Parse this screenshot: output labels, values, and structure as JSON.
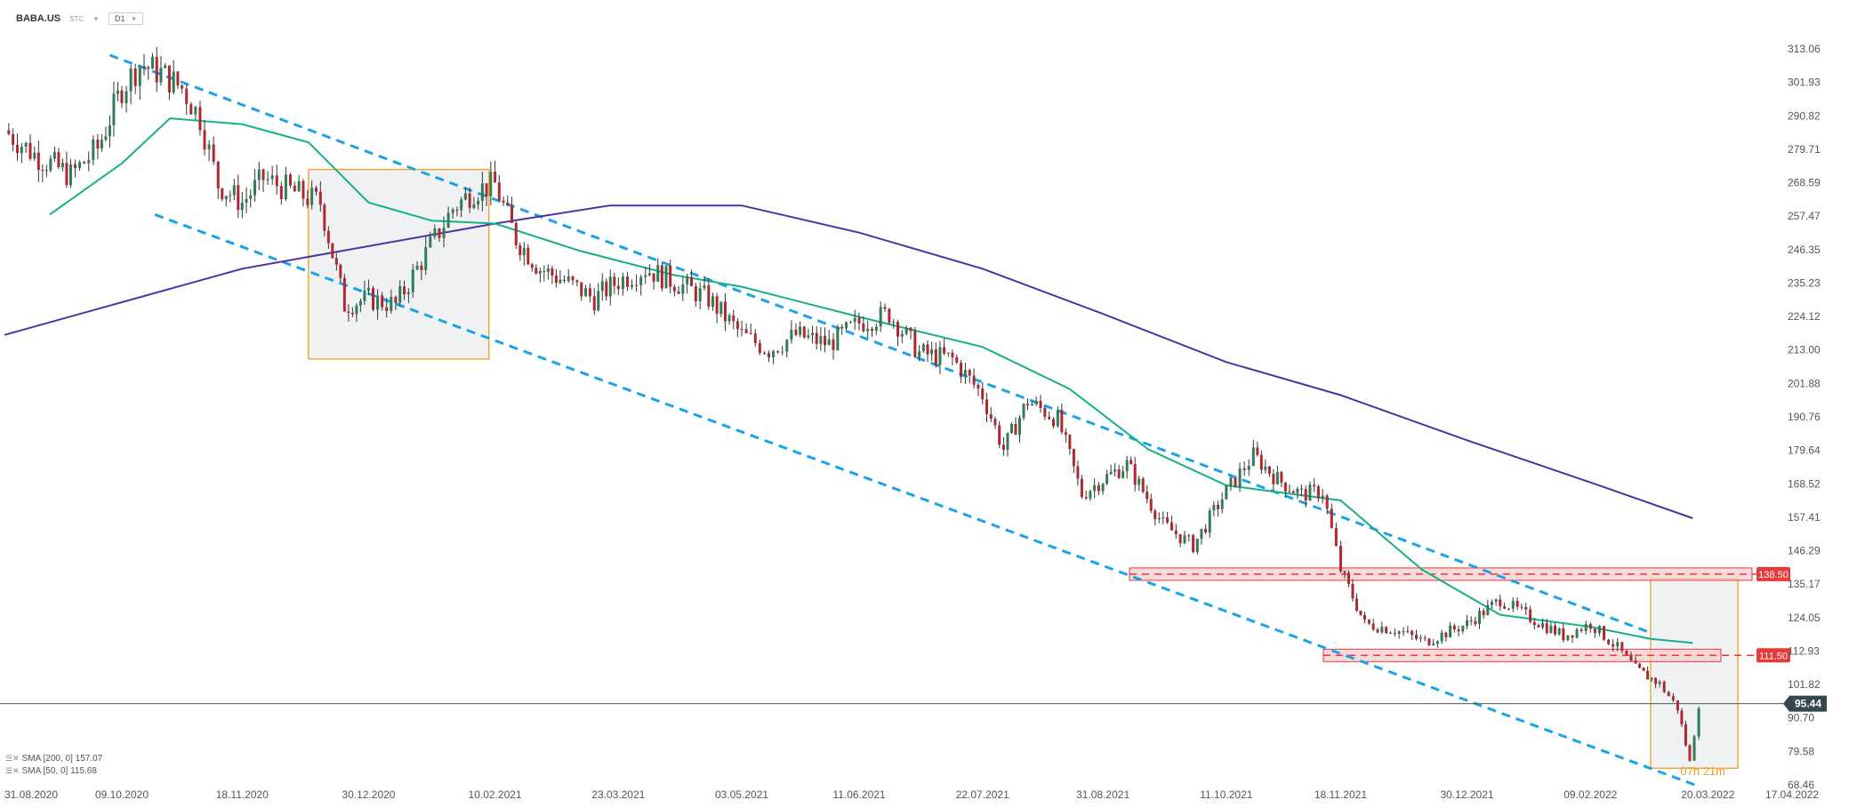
{
  "header": {
    "symbol": "BABA.US",
    "source": "STC",
    "timeframe": "D1"
  },
  "legend": [
    {
      "label": "SMA [200, 0] 157.07"
    },
    {
      "label": "SMA [50, 0] 115.68"
    }
  ],
  "timer": {
    "hours": "07",
    "h_unit": "h",
    "minutes": "21",
    "m_unit": "m"
  },
  "colors": {
    "up_candle": "#2e7d55",
    "down_candle": "#b0282f",
    "sma50": "#14b08a",
    "sma200": "#4b33a8",
    "channel": "#1aa3e8",
    "box": "#f0a020",
    "level": "#e53b3b",
    "price_tag": "#37474f"
  },
  "chart_data": {
    "type": "candlestick",
    "title": "",
    "xlabel": "",
    "ylabel": "",
    "y_ticks": [
      "313.06",
      "301.93",
      "290.82",
      "279.71",
      "268.59",
      "257.47",
      "246.35",
      "235.23",
      "224.12",
      "213.00",
      "201.88",
      "190.76",
      "179.64",
      "168.52",
      "157.41",
      "146.29",
      "135.17",
      "124.05",
      "112.93",
      "101.82",
      "90.70",
      "79.58",
      "68.46"
    ],
    "x_ticks": [
      "31.08.2020",
      "09.10.2020",
      "18.11.2020",
      "30.12.2020",
      "10.02.2021",
      "23.03.2021",
      "03.05.2021",
      "11.06.2021",
      "22.07.2021",
      "31.08.2021",
      "11.10.2021",
      "18.11.2021",
      "30.12.2021",
      "09.02.2022",
      "20.03.2022",
      "17.04.2022"
    ],
    "ylim": [
      68.46,
      313.06
    ],
    "last_price": "95.44",
    "levels": [
      {
        "label": "138.50",
        "value": 138.5
      },
      {
        "label": "111.50",
        "value": 111.5
      }
    ],
    "close_path": [
      [
        "31.08.2020",
        286
      ],
      [
        "10.09.2020",
        278
      ],
      [
        "22.09.2020",
        271
      ],
      [
        "01.10.2020",
        280
      ],
      [
        "09.10.2020",
        300
      ],
      [
        "15.10.2020",
        308
      ],
      [
        "22.10.2020",
        305
      ],
      [
        "29.10.2020",
        300
      ],
      [
        "04.11.2020",
        290
      ],
      [
        "10.11.2020",
        268
      ],
      [
        "18.11.2020",
        262
      ],
      [
        "25.11.2020",
        270
      ],
      [
        "04.12.2020",
        266
      ],
      [
        "14.12.2020",
        262
      ],
      [
        "22.12.2020",
        228
      ],
      [
        "30.12.2020",
        230
      ],
      [
        "08.01.2021",
        228
      ],
      [
        "18.01.2021",
        245
      ],
      [
        "27.01.2021",
        260
      ],
      [
        "03.02.2021",
        266
      ],
      [
        "10.02.2021",
        268
      ],
      [
        "17.02.2021",
        250
      ],
      [
        "25.02.2021",
        240
      ],
      [
        "05.03.2021",
        236
      ],
      [
        "15.03.2021",
        230
      ],
      [
        "23.03.2021",
        236
      ],
      [
        "01.04.2021",
        240
      ],
      [
        "12.04.2021",
        235
      ],
      [
        "22.04.2021",
        230
      ],
      [
        "03.05.2021",
        218
      ],
      [
        "12.05.2021",
        213
      ],
      [
        "21.05.2021",
        218
      ],
      [
        "01.06.2021",
        215
      ],
      [
        "11.06.2021",
        222
      ],
      [
        "21.06.2021",
        225
      ],
      [
        "01.07.2021",
        212
      ],
      [
        "12.07.2021",
        210
      ],
      [
        "22.07.2021",
        198
      ],
      [
        "29.07.2021",
        180
      ],
      [
        "06.08.2021",
        196
      ],
      [
        "16.08.2021",
        190
      ],
      [
        "24.08.2021",
        165
      ],
      [
        "31.08.2021",
        170
      ],
      [
        "08.09.2021",
        175
      ],
      [
        "20.09.2021",
        155
      ],
      [
        "30.09.2021",
        148
      ],
      [
        "11.10.2021",
        166
      ],
      [
        "20.10.2021",
        178
      ],
      [
        "28.10.2021",
        170
      ],
      [
        "05.11.2021",
        165
      ],
      [
        "12.11.2021",
        166
      ],
      [
        "18.11.2021",
        140
      ],
      [
        "26.11.2021",
        122
      ],
      [
        "06.12.2021",
        120
      ],
      [
        "16.12.2021",
        116
      ],
      [
        "30.12.2021",
        122
      ],
      [
        "10.01.2022",
        130
      ],
      [
        "20.01.2022",
        124
      ],
      [
        "31.01.2022",
        118
      ],
      [
        "09.02.2022",
        122
      ],
      [
        "18.02.2022",
        114
      ],
      [
        "24.02.2022",
        107
      ],
      [
        "04.03.2022",
        102
      ],
      [
        "10.03.2022",
        94
      ],
      [
        "14.03.2022",
        76
      ],
      [
        "17.03.2022",
        95.44
      ]
    ],
    "sma50_path": [
      [
        "15.09.2020",
        258
      ],
      [
        "09.10.2020",
        275
      ],
      [
        "25.10.2020",
        290
      ],
      [
        "18.11.2020",
        288
      ],
      [
        "10.12.2020",
        282
      ],
      [
        "30.12.2020",
        262
      ],
      [
        "20.01.2021",
        256
      ],
      [
        "10.02.2021",
        255
      ],
      [
        "10.03.2021",
        246
      ],
      [
        "10.04.2021",
        238
      ],
      [
        "03.05.2021",
        234
      ],
      [
        "11.06.2021",
        224
      ],
      [
        "22.07.2021",
        214
      ],
      [
        "20.08.2021",
        200
      ],
      [
        "15.09.2021",
        180
      ],
      [
        "11.10.2021",
        168
      ],
      [
        "18.11.2021",
        163
      ],
      [
        "15.12.2021",
        140
      ],
      [
        "10.01.2022",
        125
      ],
      [
        "09.02.2022",
        121
      ],
      [
        "01.03.2022",
        117
      ],
      [
        "15.03.2022",
        115.68
      ]
    ],
    "sma200_path": [
      [
        "31.08.2020",
        218
      ],
      [
        "18.11.2020",
        240
      ],
      [
        "10.02.2021",
        255
      ],
      [
        "20.03.2021",
        261
      ],
      [
        "03.05.2021",
        261
      ],
      [
        "11.06.2021",
        252
      ],
      [
        "22.07.2021",
        240
      ],
      [
        "31.08.2021",
        225
      ],
      [
        "11.10.2021",
        209
      ],
      [
        "18.11.2021",
        198
      ],
      [
        "30.12.2021",
        183
      ],
      [
        "09.02.2022",
        169
      ],
      [
        "15.03.2022",
        157.07
      ]
    ],
    "channel_upper": [
      [
        "05.10.2020",
        311
      ],
      [
        "01.03.2022",
        119
      ]
    ],
    "channel_lower": [
      [
        "20.10.2020",
        258
      ],
      [
        "17.03.2022",
        68
      ]
    ],
    "boxes": [
      {
        "from": "10.12.2020",
        "to": "08.02.2021",
        "low": 210,
        "high": 273
      },
      {
        "from": "01.03.2022",
        "to": "30.03.2022",
        "low": 74,
        "high": 137
      }
    ],
    "grid": false,
    "legend_position": "bottom-left"
  }
}
